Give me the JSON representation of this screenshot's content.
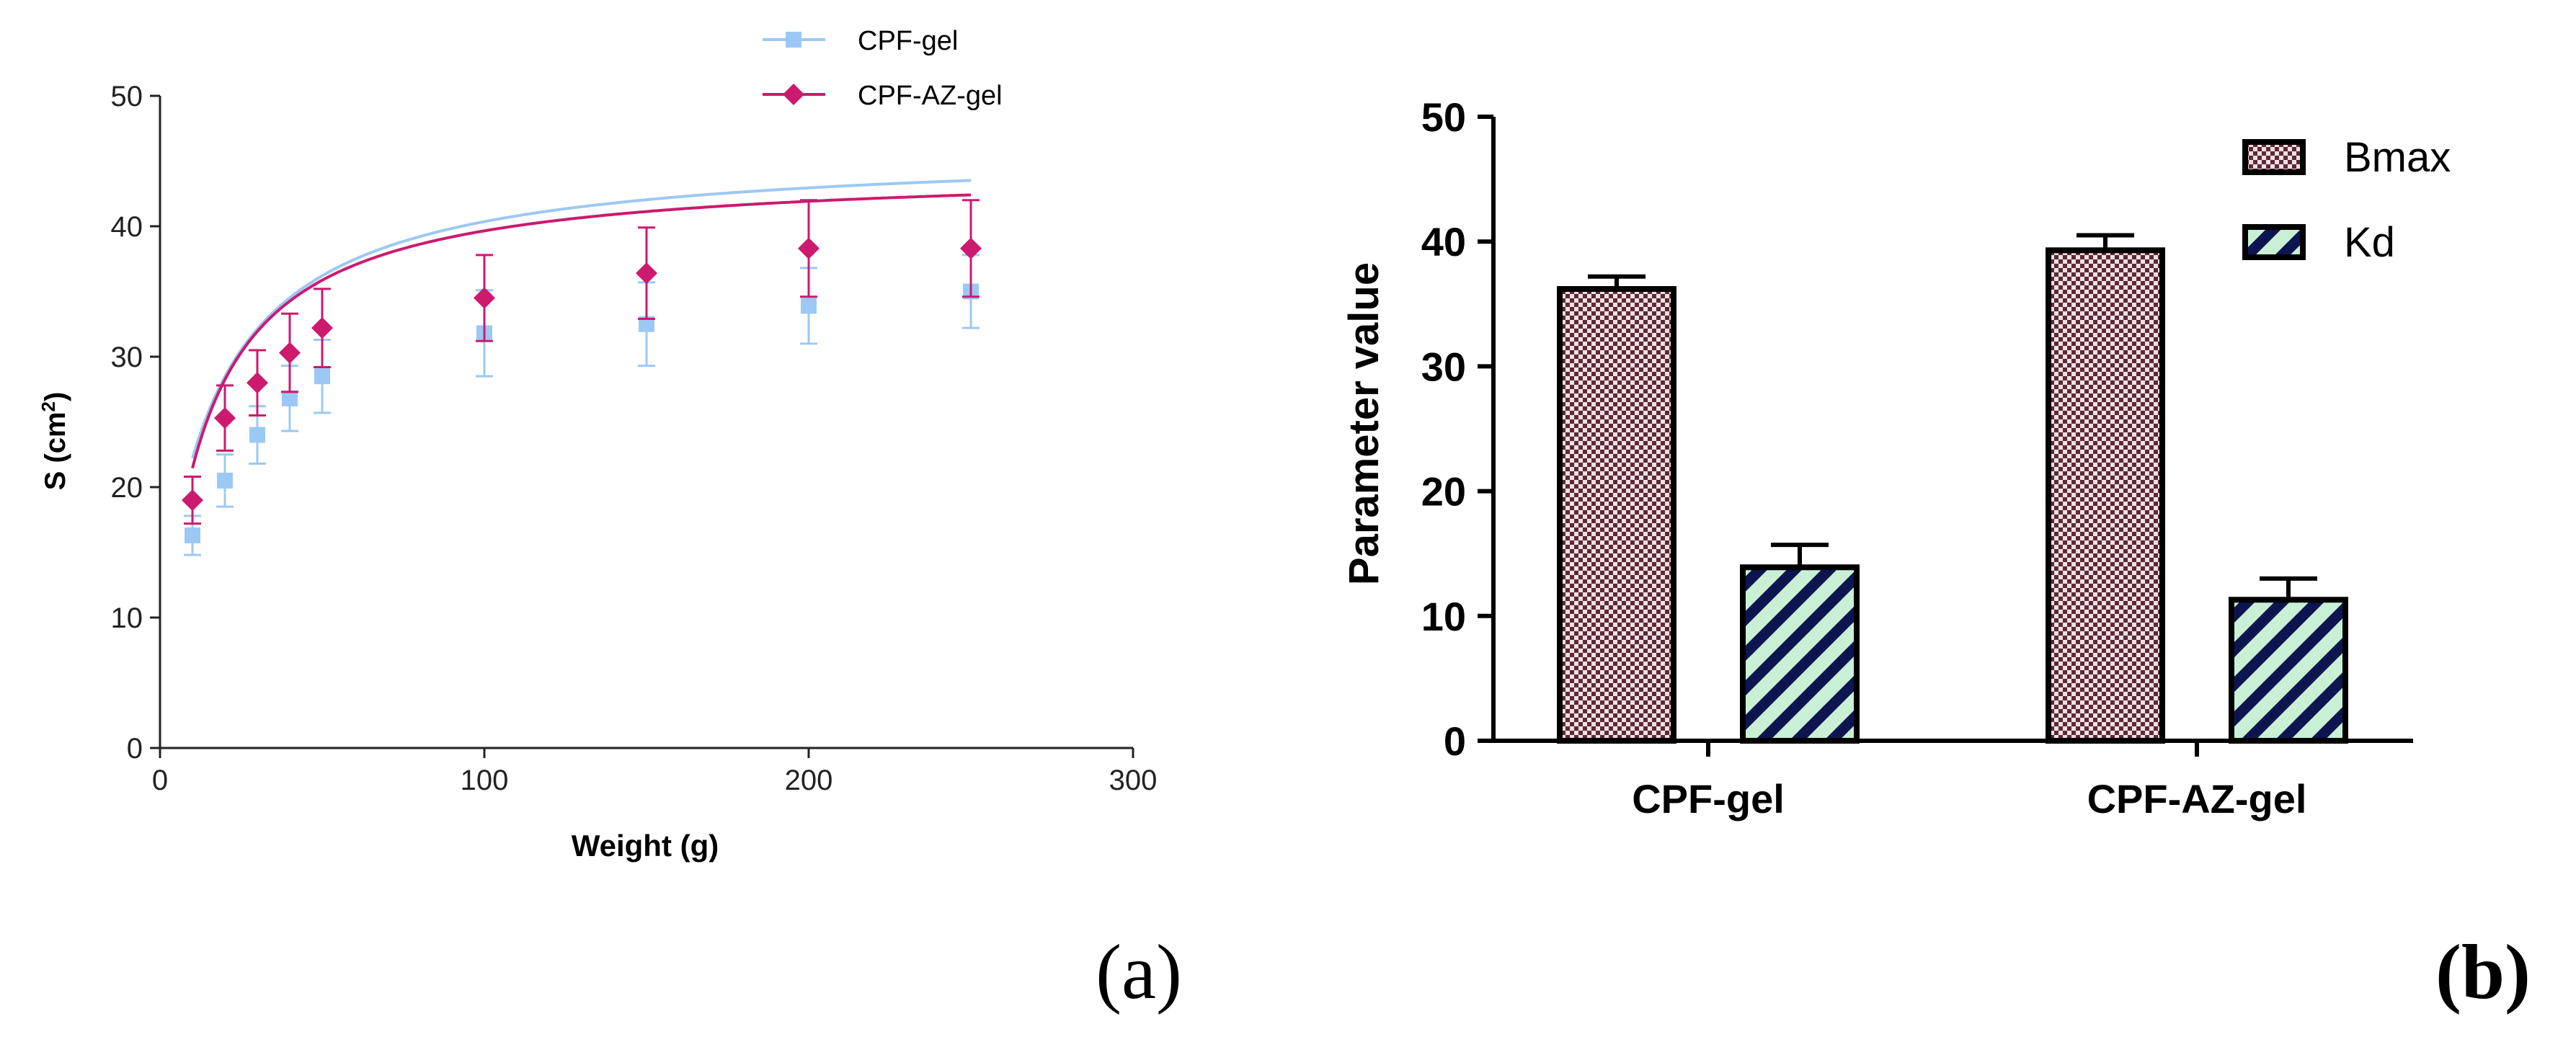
{
  "panels": {
    "a_label": "(a)",
    "b_label": "(b)"
  },
  "colors": {
    "cpf_gel": "#9CC8F5",
    "cpf_az_gel": "#CC1A6E",
    "axis": "#222222",
    "bmax_dot": "#5a2a35",
    "bmax_bg": "#f2dfe3",
    "kd_stripe": "#0d1550",
    "kd_bg": "#c9f0d4"
  },
  "chart_data": [
    {
      "id": "a",
      "type": "scatter",
      "title": "",
      "xlabel": "Weight (g)",
      "ylabel": "S (cm",
      "ylabel_sup": "2",
      "ylabel_close": ")",
      "xlim": [
        0,
        300
      ],
      "ylim": [
        0,
        50
      ],
      "xticks": [
        0,
        100,
        200,
        300
      ],
      "yticks": [
        0,
        10,
        20,
        30,
        40,
        50
      ],
      "grid": false,
      "legend_position": "top-center",
      "series": [
        {
          "name": "CPF-gel",
          "marker": "square",
          "color_key": "cpf_gel",
          "x": [
            10,
            20,
            30,
            40,
            50,
            100,
            150,
            200,
            250
          ],
          "y": [
            16.3,
            20.5,
            24.0,
            26.8,
            28.5,
            31.8,
            32.5,
            33.9,
            35.0
          ],
          "err": [
            1.5,
            2.0,
            2.2,
            2.5,
            2.8,
            3.3,
            3.2,
            2.9,
            2.8
          ],
          "fit": {
            "bmax": 37.0,
            "kd": 18.0,
            "c": 9.0
          }
        },
        {
          "name": "CPF-AZ-gel",
          "marker": "diamond",
          "color_key": "cpf_az_gel",
          "x": [
            10,
            20,
            30,
            40,
            50,
            100,
            150,
            200,
            250
          ],
          "y": [
            19.0,
            25.3,
            28.0,
            30.3,
            32.2,
            34.5,
            36.4,
            38.3,
            38.3
          ],
          "err": [
            1.8,
            2.5,
            2.5,
            3.0,
            3.0,
            3.3,
            3.5,
            3.7,
            3.7
          ],
          "fit": {
            "bmax": 39.5,
            "kd": 14.0,
            "c": 5.0
          }
        }
      ]
    },
    {
      "id": "b",
      "type": "bar",
      "title": "",
      "xlabel": "",
      "ylabel": "Parameter value",
      "categories": [
        "CPF-gel",
        "CPF-AZ-gel"
      ],
      "ylim": [
        0,
        50
      ],
      "yticks": [
        0,
        10,
        20,
        30,
        40,
        50
      ],
      "grid": false,
      "legend_position": "top-right",
      "series": [
        {
          "name": "Bmax",
          "pattern": "checker",
          "values": [
            36.2,
            39.3
          ],
          "err": [
            1.0,
            1.2
          ]
        },
        {
          "name": "Kd",
          "pattern": "stripe",
          "values": [
            13.9,
            11.3
          ],
          "err": [
            1.8,
            1.7
          ]
        }
      ]
    }
  ]
}
